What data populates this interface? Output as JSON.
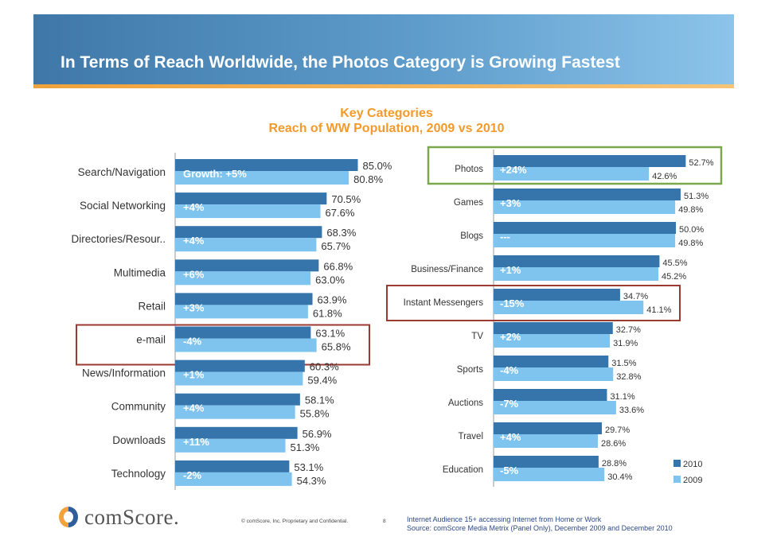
{
  "header": {
    "title": "In Terms of Reach Worldwide, the Photos Category is Growing Fastest"
  },
  "chart_data": {
    "type": "bar",
    "orientation": "horizontal",
    "title": "Key Categories",
    "subtitle": "Reach of WW Population, 2009 vs 2010",
    "series_names": [
      "2010",
      "2009"
    ],
    "colors": {
      "2010": "#3575ab",
      "2009": "#7fc3ef",
      "highlight_green": "#7aa84a",
      "highlight_red": "#9b3a30"
    },
    "legend": {
      "items": [
        "2010",
        "2009"
      ],
      "position": "bottom-right"
    },
    "panels": [
      {
        "categories": [
          {
            "name": "Search/Navigation",
            "v2010": 85.0,
            "v2009": 80.8,
            "label2010": "85.0%",
            "label2009": "80.8%",
            "growth": "Growth: +5%"
          },
          {
            "name": "Social Networking",
            "v2010": 70.5,
            "v2009": 67.6,
            "label2010": "70.5%",
            "label2009": "67.6%",
            "growth": "+4%"
          },
          {
            "name": "Directories/Resour..",
            "v2010": 68.3,
            "v2009": 65.7,
            "label2010": "68.3%",
            "label2009": "65.7%",
            "growth": "+4%"
          },
          {
            "name": "Multimedia",
            "v2010": 66.8,
            "v2009": 63.0,
            "label2010": "66.8%",
            "label2009": "63.0%",
            "growth": "+6%"
          },
          {
            "name": "Retail",
            "v2010": 63.9,
            "v2009": 61.8,
            "label2010": "63.9%",
            "label2009": "61.8%",
            "growth": "+3%"
          },
          {
            "name": "e-mail",
            "v2010": 63.1,
            "v2009": 65.8,
            "label2010": "63.1%",
            "label2009": "65.8%",
            "growth": "-4%",
            "highlight": "red"
          },
          {
            "name": "News/Information",
            "v2010": 60.3,
            "v2009": 59.4,
            "label2010": "60.3%",
            "label2009": "59.4%",
            "growth": "+1%"
          },
          {
            "name": "Community",
            "v2010": 58.1,
            "v2009": 55.8,
            "label2010": "58.1%",
            "label2009": "55.8%",
            "growth": "+4%"
          },
          {
            "name": "Downloads",
            "v2010": 56.9,
            "v2009": 51.3,
            "label2010": "56.9%",
            "label2009": "51.3%",
            "growth": "+11%"
          },
          {
            "name": "Technology",
            "v2010": 53.1,
            "v2009": 54.3,
            "label2010": "53.1%",
            "label2009": "54.3%",
            "growth": "-2%"
          }
        ]
      },
      {
        "categories": [
          {
            "name": "Photos",
            "v2010": 52.7,
            "v2009": 42.6,
            "label2010": "52.7%",
            "label2009": "42.6%",
            "growth": "+24%",
            "highlight": "green"
          },
          {
            "name": "Games",
            "v2010": 51.3,
            "v2009": 49.8,
            "label2010": "51.3%",
            "label2009": "49.8%",
            "growth": "+3%"
          },
          {
            "name": "Blogs",
            "v2010": 50.0,
            "v2009": 49.8,
            "label2010": "50.0%",
            "label2009": "49.8%",
            "growth": "---"
          },
          {
            "name": "Business/Finance",
            "v2010": 45.5,
            "v2009": 45.2,
            "label2010": "45.5%",
            "label2009": "45.2%",
            "growth": "+1%"
          },
          {
            "name": "Instant Messengers",
            "v2010": 34.7,
            "v2009": 41.1,
            "label2010": "34.7%",
            "label2009": "41.1%",
            "growth": "-15%",
            "highlight": "red"
          },
          {
            "name": "TV",
            "v2010": 32.7,
            "v2009": 31.9,
            "label2010": "32.7%",
            "label2009": "31.9%",
            "growth": "+2%"
          },
          {
            "name": "Sports",
            "v2010": 31.5,
            "v2009": 32.8,
            "label2010": "31.5%",
            "label2009": "32.8%",
            "growth": "-4%"
          },
          {
            "name": "Auctions",
            "v2010": 31.1,
            "v2009": 33.6,
            "label2010": "31.1%",
            "label2009": "33.6%",
            "growth": "-7%"
          },
          {
            "name": "Travel",
            "v2010": 29.7,
            "v2009": 28.6,
            "label2010": "29.7%",
            "label2009": "28.6%",
            "growth": "+4%"
          },
          {
            "name": "Education",
            "v2010": 28.8,
            "v2009": 30.4,
            "label2010": "28.8%",
            "label2009": "30.4%",
            "growth": "-5%"
          }
        ]
      }
    ]
  },
  "footer": {
    "logo_text": "comScore.",
    "copyright": "© comScore, Inc.  Proprietary and Confidential.",
    "page_number": "8",
    "source_line1": "Internet Audience 15+ accessing Internet from Home or Work",
    "source_line2": "Source:  comScore Media Metrix (Panel Only), December 2009 and December 2010"
  }
}
